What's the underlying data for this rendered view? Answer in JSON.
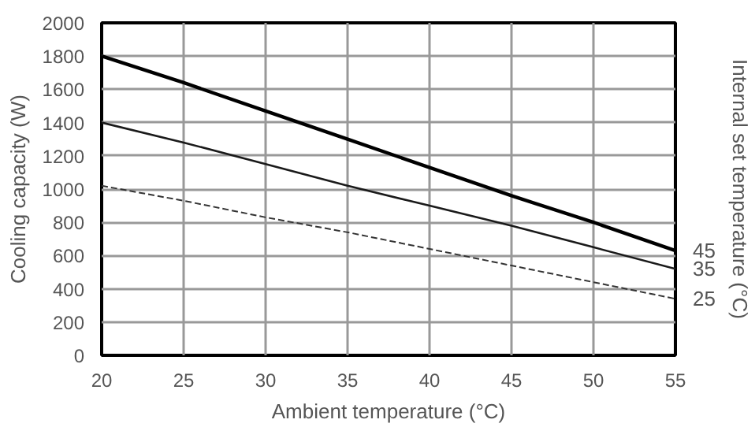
{
  "chart_data": {
    "type": "line",
    "xlabel": "Ambient temperature (°C)",
    "ylabel": "Cooling capacity (W)",
    "legend_title": "Internal set temperature (°C)",
    "x": [
      20,
      25,
      30,
      35,
      40,
      45,
      50,
      55
    ],
    "series": [
      {
        "name": "45",
        "color": "#000000",
        "line_style": "solid",
        "values": [
          1800,
          1640,
          1470,
          1300,
          1130,
          960,
          800,
          630
        ]
      },
      {
        "name": "35",
        "color": "#1a1a1a",
        "line_style": "solid",
        "values": [
          1400,
          1280,
          1150,
          1020,
          900,
          780,
          650,
          520
        ]
      },
      {
        "name": "25",
        "color": "#333333",
        "line_style": "dashed",
        "values": [
          1020,
          930,
          830,
          740,
          640,
          540,
          440,
          340
        ]
      }
    ],
    "xlim": [
      20,
      55
    ],
    "xticks": [
      20,
      25,
      30,
      35,
      40,
      45,
      50,
      55
    ],
    "ylim": [
      0,
      2000
    ],
    "yticks": [
      0,
      200,
      400,
      600,
      800,
      1000,
      1200,
      1400,
      1600,
      1800,
      2000
    ],
    "grid": true,
    "marker": "none"
  }
}
